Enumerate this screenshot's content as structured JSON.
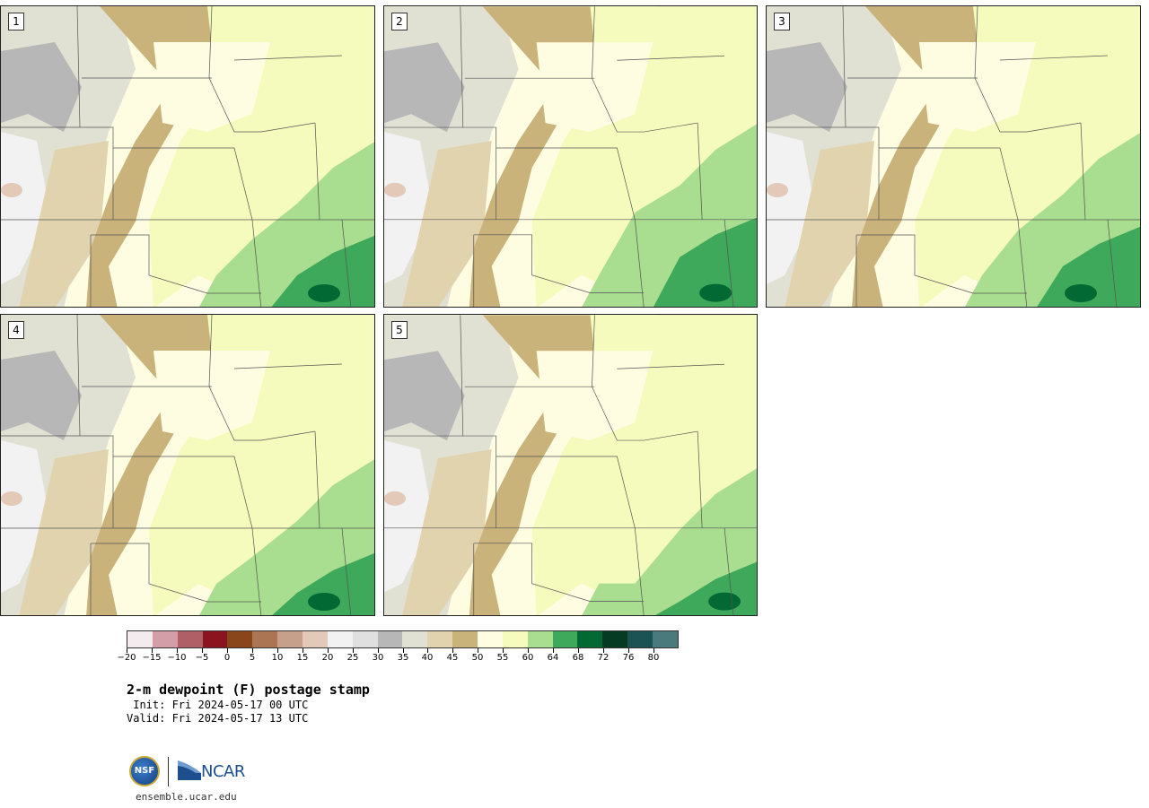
{
  "panels": [
    {
      "label": "1"
    },
    {
      "label": "2"
    },
    {
      "label": "3"
    },
    {
      "label": "4"
    },
    {
      "label": "5"
    }
  ],
  "colorbar": {
    "colors": [
      "#f4ebee",
      "#d49ea8",
      "#b15f67",
      "#8a1520",
      "#88461a",
      "#ab7553",
      "#c6a08b",
      "#e2c9b8",
      "#f2f2f2",
      "#e0e0e0",
      "#b7b7b7",
      "#e0e0d3",
      "#e1d3ad",
      "#cab27b",
      "#fefde2",
      "#f5fbbd",
      "#a9dd8f",
      "#3fa95b",
      "#026834",
      "#053b22",
      "#1b5254",
      "#4b7a7c"
    ],
    "tick_labels": [
      "−20",
      "−15",
      "−10",
      "−5",
      "0",
      "5",
      "10",
      "15",
      "20",
      "25",
      "30",
      "35",
      "40",
      "45",
      "50",
      "55",
      "60",
      "64",
      "68",
      "72",
      "76",
      "80"
    ]
  },
  "title": "2-m dewpoint (F) postage stamp",
  "init_text": " Init: Fri 2024-05-17 00 UTC",
  "valid_text": "Valid: Fri 2024-05-17 13 UTC",
  "logos": {
    "nsf_text": "NSF",
    "ncar_text": "NCAR"
  },
  "footer_url": "ensemble.ucar.edu"
}
